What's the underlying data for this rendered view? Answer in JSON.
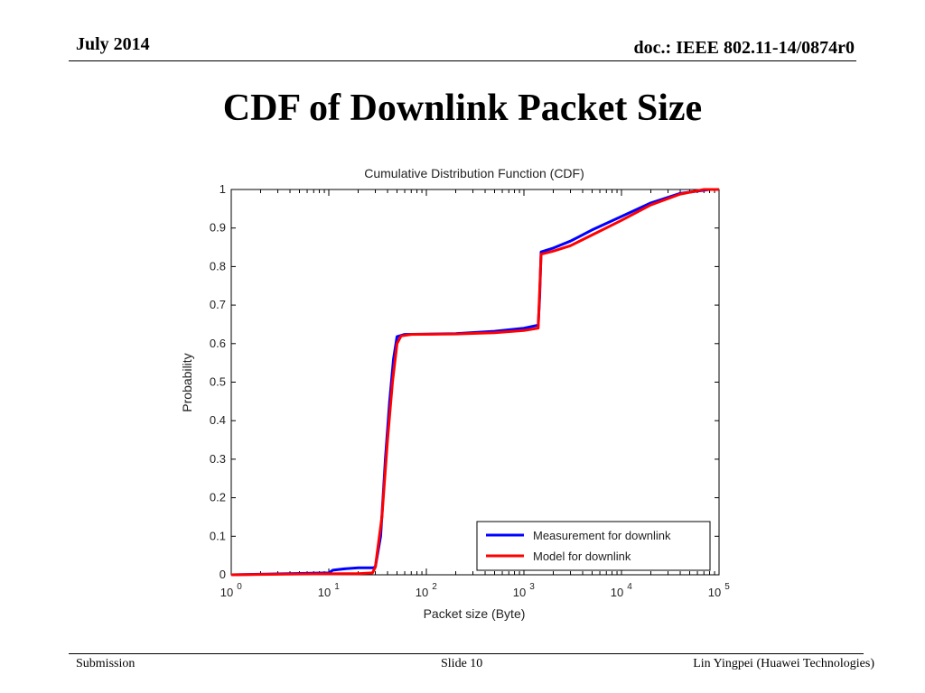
{
  "header": {
    "date": "July 2014",
    "doc": "doc.: IEEE 802.11-14/0874r0"
  },
  "slide_title": "CDF of Downlink Packet Size",
  "footer": {
    "left": "Submission",
    "center": "Slide 10",
    "right": "Lin Yingpei (Huawei Technologies)"
  },
  "chart_data": {
    "type": "line",
    "title": "Cumulative Distribution Function (CDF)",
    "xlabel": "Packet size (Byte)",
    "ylabel": "Probability",
    "xscale": "log",
    "xlim": [
      1,
      100000
    ],
    "ylim": [
      0,
      1
    ],
    "x_ticks": [
      {
        "base": "10",
        "exp": "0",
        "value": 1
      },
      {
        "base": "10",
        "exp": "1",
        "value": 10
      },
      {
        "base": "10",
        "exp": "2",
        "value": 100
      },
      {
        "base": "10",
        "exp": "3",
        "value": 1000
      },
      {
        "base": "10",
        "exp": "4",
        "value": 10000
      },
      {
        "base": "10",
        "exp": "5",
        "value": 100000
      }
    ],
    "y_ticks": [
      "0",
      "0.1",
      "0.2",
      "0.3",
      "0.4",
      "0.5",
      "0.6",
      "0.7",
      "0.8",
      "0.9",
      "1"
    ],
    "grid": false,
    "legend_position": "bottom-right",
    "series": [
      {
        "name": "Measurement for downlink",
        "color": "#0000ff",
        "points": [
          [
            1,
            0
          ],
          [
            10,
            0.005
          ],
          [
            11,
            0.012
          ],
          [
            15,
            0.016
          ],
          [
            20,
            0.018
          ],
          [
            28,
            0.018
          ],
          [
            30,
            0.02
          ],
          [
            34,
            0.1
          ],
          [
            38,
            0.3
          ],
          [
            42,
            0.45
          ],
          [
            46,
            0.56
          ],
          [
            50,
            0.618
          ],
          [
            60,
            0.624
          ],
          [
            200,
            0.626
          ],
          [
            500,
            0.632
          ],
          [
            1000,
            0.64
          ],
          [
            1400,
            0.648
          ],
          [
            1450,
            0.72
          ],
          [
            1500,
            0.838
          ],
          [
            2000,
            0.848
          ],
          [
            3000,
            0.866
          ],
          [
            5000,
            0.895
          ],
          [
            10000,
            0.93
          ],
          [
            20000,
            0.965
          ],
          [
            40000,
            0.99
          ],
          [
            80000,
            1
          ]
        ]
      },
      {
        "name": "Model for downlink",
        "color": "#ff0000",
        "points": [
          [
            1,
            0
          ],
          [
            5,
            0.002
          ],
          [
            20,
            0.003
          ],
          [
            28,
            0.005
          ],
          [
            30,
            0.02
          ],
          [
            35,
            0.15
          ],
          [
            40,
            0.35
          ],
          [
            45,
            0.5
          ],
          [
            50,
            0.6
          ],
          [
            55,
            0.62
          ],
          [
            70,
            0.624
          ],
          [
            200,
            0.625
          ],
          [
            500,
            0.628
          ],
          [
            1000,
            0.634
          ],
          [
            1400,
            0.64
          ],
          [
            1500,
            0.832
          ],
          [
            2000,
            0.84
          ],
          [
            3000,
            0.854
          ],
          [
            5000,
            0.882
          ],
          [
            10000,
            0.92
          ],
          [
            20000,
            0.96
          ],
          [
            40000,
            0.988
          ],
          [
            70000,
            1
          ],
          [
            100000,
            1
          ]
        ]
      }
    ]
  }
}
